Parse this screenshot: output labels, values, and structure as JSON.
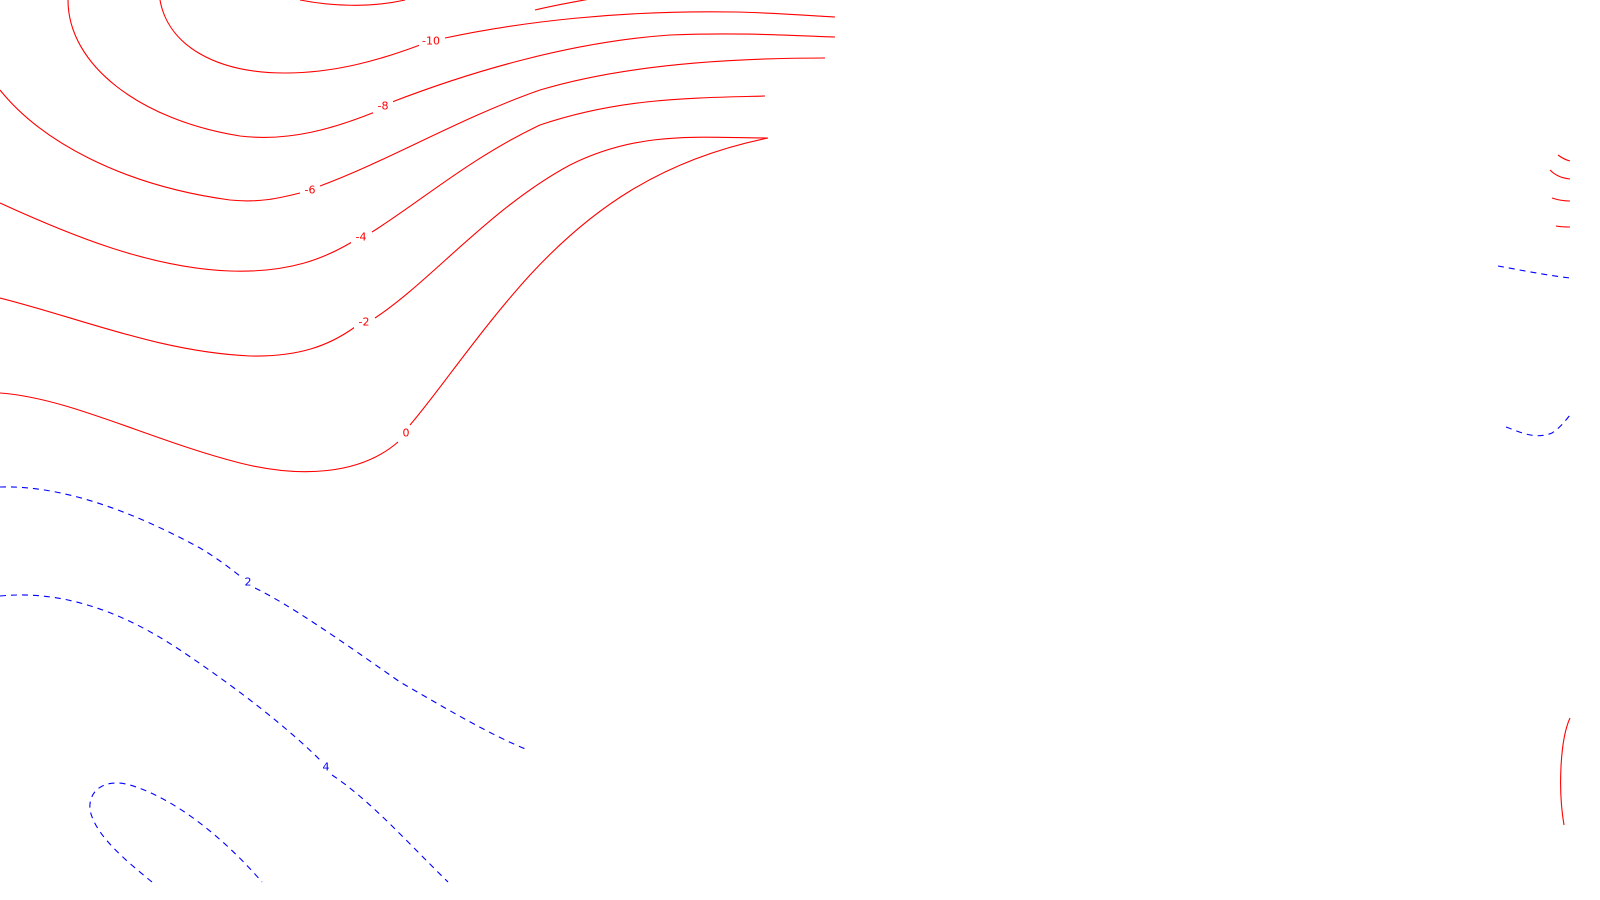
{
  "colors": {
    "background": "#ffffff",
    "negative_contour": "#ff0000",
    "positive_contour": "#0000ff"
  },
  "contours": {
    "negative": [
      {
        "level": "-10",
        "label": "-10"
      },
      {
        "level": "-8",
        "label": "-8"
      },
      {
        "level": "-6",
        "label": "-6"
      },
      {
        "level": "-4",
        "label": "-4"
      },
      {
        "level": "-2",
        "label": "-2"
      },
      {
        "level": "0",
        "label": "0"
      }
    ],
    "positive": [
      {
        "level": "2",
        "label": "2"
      },
      {
        "level": "4",
        "label": "4"
      }
    ]
  }
}
